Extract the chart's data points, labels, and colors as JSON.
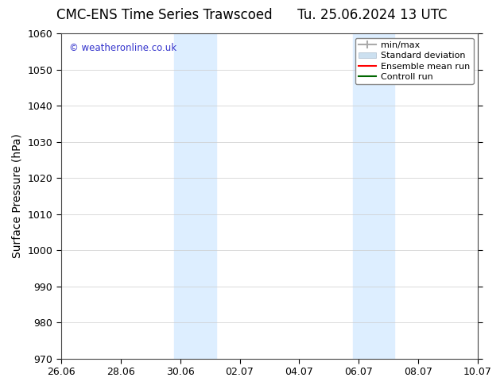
{
  "title_left": "CMC-ENS Time Series Trawscoed",
  "title_right": "Tu. 25.06.2024 13 UTC",
  "ylabel": "Surface Pressure (hPa)",
  "ylim": [
    970,
    1060
  ],
  "yticks": [
    970,
    980,
    990,
    1000,
    1010,
    1020,
    1030,
    1040,
    1050,
    1060
  ],
  "xtick_labels": [
    "26.06",
    "28.06",
    "30.06",
    "02.07",
    "04.07",
    "06.07",
    "08.07",
    "10.07"
  ],
  "xmin": 0,
  "xmax": 14,
  "xtick_positions": [
    0,
    2,
    4,
    6,
    8,
    10,
    12,
    14
  ],
  "shaded_regions": [
    {
      "xstart": 3.8,
      "xend": 5.2,
      "color": "#ddeeff"
    },
    {
      "xstart": 9.8,
      "xend": 11.2,
      "color": "#ddeeff"
    }
  ],
  "background_color": "#ffffff",
  "grid_color": "#cccccc",
  "watermark_text": "© weatheronline.co.uk",
  "watermark_color": "#3333cc",
  "legend_items": [
    {
      "label": "min/max",
      "color": "#aaaaaa",
      "lw": 1.5
    },
    {
      "label": "Standard deviation",
      "color": "#cce0f0",
      "lw": 7
    },
    {
      "label": "Ensemble mean run",
      "color": "#ff0000",
      "lw": 1.5
    },
    {
      "label": "Controll run",
      "color": "#006600",
      "lw": 1.5
    }
  ],
  "title_fontsize": 12,
  "axis_label_fontsize": 10,
  "tick_fontsize": 9,
  "legend_fontsize": 8
}
